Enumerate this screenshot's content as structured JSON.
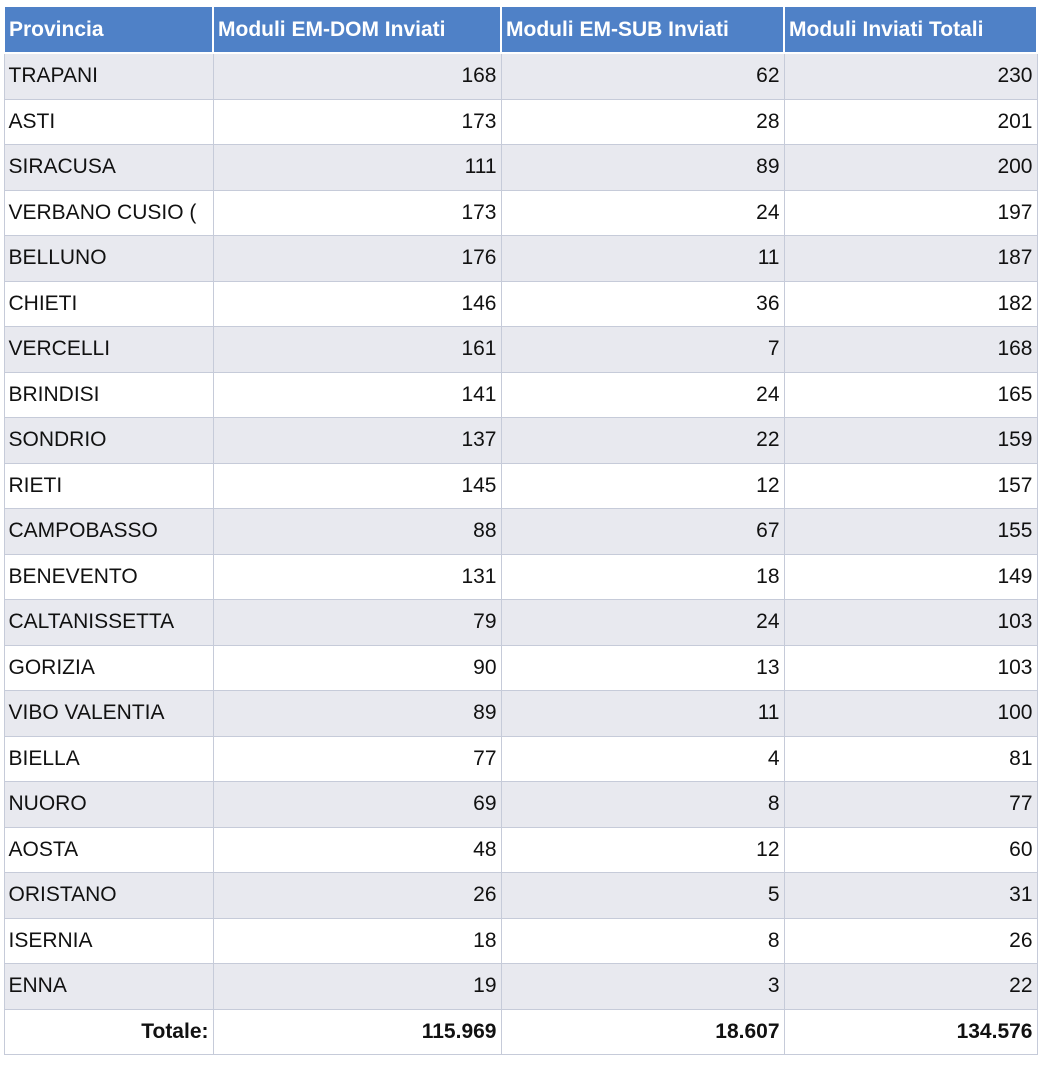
{
  "columns": [
    "Provincia",
    "Moduli EM-DOM Inviati",
    "Moduli EM-SUB Inviati",
    "Moduli Inviati Totali"
  ],
  "rows": [
    [
      "TRAPANI",
      "168",
      "62",
      "230"
    ],
    [
      "ASTI",
      "173",
      "28",
      "201"
    ],
    [
      "SIRACUSA",
      "111",
      "89",
      "200"
    ],
    [
      "VERBANO CUSIO (",
      "173",
      "24",
      "197"
    ],
    [
      "BELLUNO",
      "176",
      "11",
      "187"
    ],
    [
      "CHIETI",
      "146",
      "36",
      "182"
    ],
    [
      "VERCELLI",
      "161",
      "7",
      "168"
    ],
    [
      "BRINDISI",
      "141",
      "24",
      "165"
    ],
    [
      "SONDRIO",
      "137",
      "22",
      "159"
    ],
    [
      "RIETI",
      "145",
      "12",
      "157"
    ],
    [
      "CAMPOBASSO",
      "88",
      "67",
      "155"
    ],
    [
      "BENEVENTO",
      "131",
      "18",
      "149"
    ],
    [
      "CALTANISSETTA",
      "79",
      "24",
      "103"
    ],
    [
      "GORIZIA",
      "90",
      "13",
      "103"
    ],
    [
      "VIBO VALENTIA",
      "89",
      "11",
      "100"
    ],
    [
      "BIELLA",
      "77",
      "4",
      "81"
    ],
    [
      "NUORO",
      "69",
      "8",
      "77"
    ],
    [
      "AOSTA",
      "48",
      "12",
      "60"
    ],
    [
      "ORISTANO",
      "26",
      "5",
      "31"
    ],
    [
      "ISERNIA",
      "18",
      "8",
      "26"
    ],
    [
      "ENNA",
      "19",
      "3",
      "22"
    ]
  ],
  "totals": {
    "label": "Totale:",
    "em_dom": "115.969",
    "em_sub": "18.607",
    "total": "134.576"
  },
  "colors": {
    "header_bg": "#4f81c7",
    "header_text": "#ffffff",
    "band_row": "#e8e9ef",
    "grid_line": "#c6cbd9"
  }
}
